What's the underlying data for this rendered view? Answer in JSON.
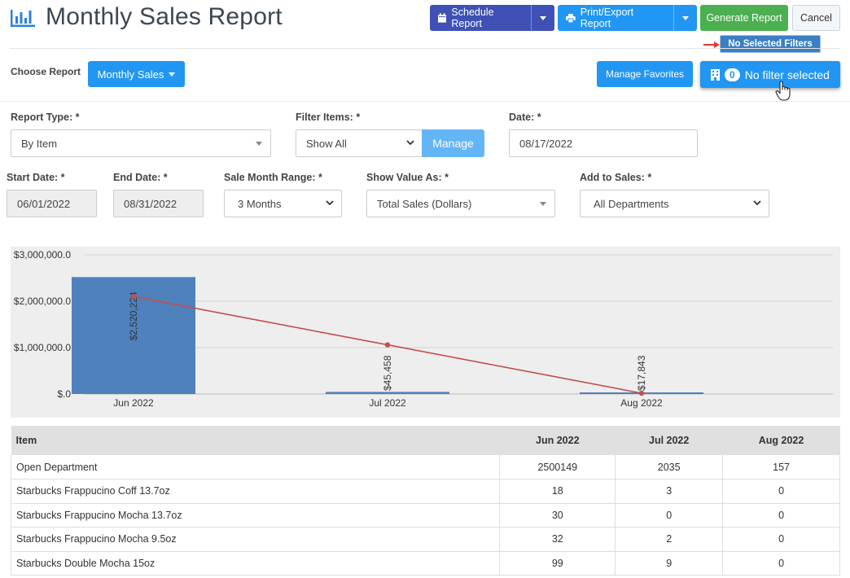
{
  "header": {
    "title": "Monthly Sales Report",
    "schedule_label": "Schedule Report",
    "print_label": "Print/Export Report",
    "generate_label": "Generate Report",
    "cancel_label": "Cancel",
    "tooltip": "No Selected Filters"
  },
  "toolbar": {
    "choose_label": "Choose Report",
    "report_select": "Monthly Sales",
    "favorites_label": "Manage Favorites",
    "filter_count": "0",
    "filter_label": "No filter selected"
  },
  "form": {
    "report_type_label": "Report Type: *",
    "report_type_value": "By Item",
    "filter_items_label": "Filter Items: *",
    "filter_items_value": "Show All",
    "manage_label": "Manage",
    "date_label": "Date: *",
    "date_value": "08/17/2022",
    "start_label": "Start Date: *",
    "start_value": "06/01/2022",
    "end_label": "End Date: *",
    "end_value": "08/31/2022",
    "range_label": "Sale Month Range: *",
    "range_value": "3 Months",
    "show_value_label": "Show Value As: *",
    "show_value_value": "Total Sales (Dollars)",
    "add_label": "Add to Sales: *",
    "add_value": "All Departments"
  },
  "colors": {
    "primary": "#2196f3",
    "indigo": "#3f51b5",
    "success": "#4caf50",
    "bar": "#4f81bd",
    "line": "#c0504d"
  },
  "chart_data": {
    "type": "bar",
    "categories": [
      "Jun 2022",
      "Jul 2022",
      "Aug 2022"
    ],
    "series": [
      {
        "type": "bar",
        "values": [
          2520224,
          45458,
          17843
        ]
      },
      {
        "type": "line",
        "values": [
          2100000,
          1060000,
          17843
        ]
      }
    ],
    "data_labels": [
      "$2,520,224",
      "$45,458",
      "$17,843"
    ],
    "y_ticks": [
      "$3,000,000.0",
      "$2,000,000.0",
      "$1,000,000.0",
      "$.0"
    ],
    "ylim": [
      0,
      3000000
    ],
    "grid": true
  },
  "table": {
    "headers": [
      "Item",
      "Jun 2022",
      "Jul 2022",
      "Aug 2022"
    ],
    "rows": [
      [
        "Open Department",
        "2500149",
        "2035",
        "157"
      ],
      [
        "Starbucks Frappucino Coff 13.7oz",
        "18",
        "3",
        "0"
      ],
      [
        "Starbucks Frappucino Mocha 13.7oz",
        "30",
        "0",
        "0"
      ],
      [
        "Starbucks Frappucino Mocha 9.5oz",
        "32",
        "2",
        "0"
      ],
      [
        "Starbucks Double Mocha 15oz",
        "99",
        "9",
        "0"
      ]
    ]
  }
}
